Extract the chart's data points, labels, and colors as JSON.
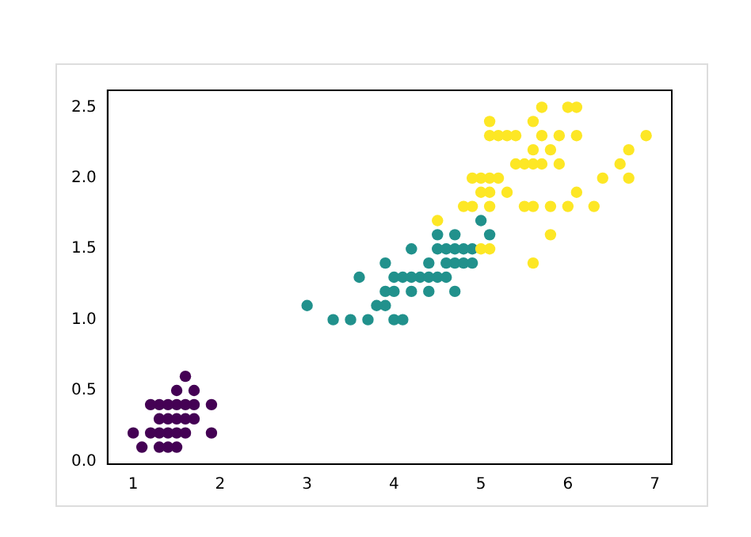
{
  "chart_data": {
    "type": "scatter",
    "marker": "circle",
    "grid": false,
    "legend": false,
    "xlim": [
      0.705,
      7.195
    ],
    "xticks": [
      1,
      2,
      3,
      4,
      5,
      6,
      7
    ],
    "ylim": [
      -0.02,
      2.62
    ],
    "yticks": [
      {
        "value": 0,
        "label": "0.0"
      },
      {
        "value": 0.5,
        "label": "0.5"
      },
      {
        "value": 1,
        "label": "1.0"
      },
      {
        "value": 1.5,
        "label": "1.5"
      },
      {
        "value": 2,
        "label": "2.0"
      },
      {
        "value": 2.5,
        "label": "2.5"
      }
    ],
    "series": [
      {
        "color": "#440154",
        "x": [
          1.4,
          1.3,
          1.5,
          1.7,
          1.4,
          1.5,
          1.6,
          1.4,
          1.1,
          1.2,
          1.5,
          1.3,
          1.7,
          1.5,
          1.0,
          1.9,
          1.6,
          1.6,
          1.9,
          1.4,
          1.3,
          1.7,
          1.2,
          1.3,
          1.5,
          1.6
        ],
        "values": [
          0.2,
          0.2,
          0.2,
          0.4,
          0.3,
          0.1,
          0.2,
          0.1,
          0.1,
          0.2,
          0.4,
          0.4,
          0.3,
          0.3,
          0.2,
          0.2,
          0.4,
          0.6,
          0.4,
          0.4,
          0.3,
          0.5,
          0.4,
          0.1,
          0.5,
          0.3
        ]
      },
      {
        "color": "#21918c",
        "x": [
          4.7,
          4.5,
          4.9,
          4.0,
          4.6,
          4.5,
          4.7,
          3.3,
          4.6,
          3.9,
          3.5,
          4.2,
          4.0,
          3.6,
          4.4,
          4.1,
          3.9,
          4.7,
          4.3,
          4.8,
          5.0,
          3.8,
          3.7,
          3.9,
          5.1,
          4.5,
          4.7,
          4.4,
          4.1,
          4.4,
          4.6,
          4.0,
          4.2,
          4.2,
          3.0,
          4.9,
          4.8
        ],
        "values": [
          1.4,
          1.5,
          1.5,
          1.3,
          1.5,
          1.3,
          1.6,
          1.0,
          1.3,
          1.4,
          1.0,
          1.5,
          1.0,
          1.3,
          1.4,
          1.0,
          1.1,
          1.2,
          1.3,
          1.4,
          1.7,
          1.1,
          1.0,
          1.2,
          1.6,
          1.6,
          1.5,
          1.3,
          1.3,
          1.2,
          1.4,
          1.2,
          1.3,
          1.2,
          1.1,
          1.4,
          1.5
        ]
      },
      {
        "color": "#fde725",
        "x": [
          6.0,
          5.1,
          5.9,
          5.6,
          5.8,
          6.6,
          4.5,
          6.3,
          5.8,
          6.1,
          5.1,
          5.3,
          5.5,
          5.0,
          5.1,
          5.3,
          5.5,
          6.7,
          6.9,
          5.0,
          5.7,
          4.9,
          6.7,
          4.9,
          5.7,
          6.0,
          4.8,
          5.6,
          5.8,
          6.1,
          6.4,
          5.6,
          5.1,
          5.6,
          6.1,
          5.6,
          5.4,
          5.1,
          5.9,
          5.7,
          5.2,
          5.0,
          5.2,
          5.4,
          5.1
        ],
        "values": [
          2.5,
          1.9,
          2.1,
          1.8,
          2.2,
          2.1,
          1.7,
          1.8,
          1.8,
          2.5,
          2.0,
          1.9,
          2.1,
          2.0,
          2.4,
          2.3,
          1.8,
          2.2,
          2.3,
          1.5,
          2.3,
          2.0,
          2.0,
          1.8,
          2.1,
          1.8,
          1.8,
          2.1,
          1.6,
          1.9,
          2.0,
          2.2,
          1.5,
          1.4,
          2.3,
          2.4,
          2.1,
          2.3,
          2.3,
          2.5,
          2.3,
          1.9,
          2.0,
          2.3,
          1.8
        ]
      }
    ]
  }
}
